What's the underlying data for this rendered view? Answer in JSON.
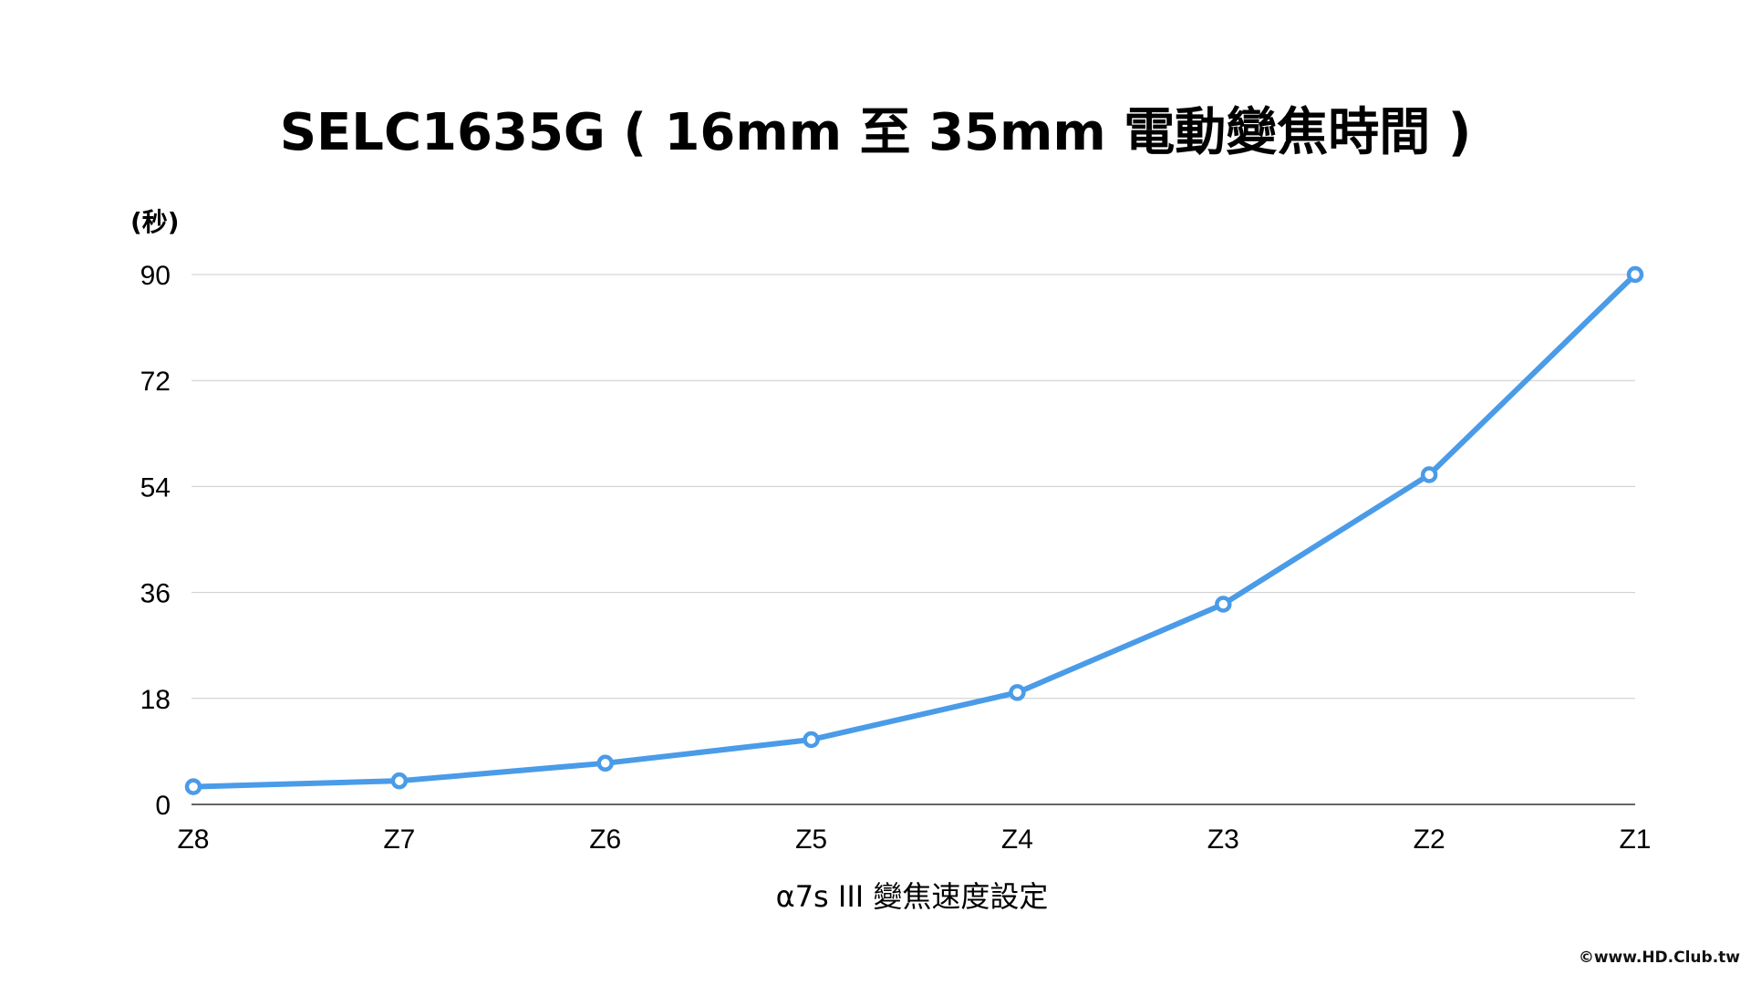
{
  "chart_data": {
    "type": "line",
    "title": "SELC1635G ( 16mm 至 35mm 電動變焦時間 )",
    "ylabel": "(秒)",
    "xlabel": "α7s III 變焦速度設定",
    "categories": [
      "Z8",
      "Z7",
      "Z6",
      "Z5",
      "Z4",
      "Z3",
      "Z2",
      "Z1"
    ],
    "series": [
      {
        "values": [
          3,
          4,
          7,
          11,
          19,
          34,
          56,
          90
        ]
      }
    ],
    "ylim": [
      0,
      90
    ],
    "yticks": [
      0,
      18,
      36,
      54,
      72,
      90
    ],
    "grid": true,
    "colors": {
      "line": "#4a9be8",
      "grid": "#cccccc",
      "axis": "#333333"
    }
  },
  "watermark": "©www.HD.Club.tw"
}
